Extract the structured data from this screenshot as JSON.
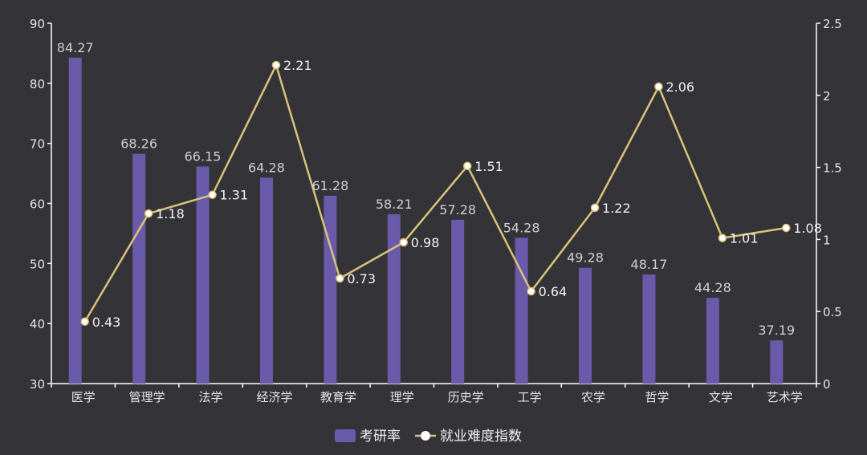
{
  "colors": {
    "background": "#343338",
    "bar": "#6a5aaa",
    "line": "#d9c27a",
    "point_fill": "#ffffff",
    "axis": "#ffffff"
  },
  "chart_data": {
    "type": "bar",
    "categories": [
      "医学",
      "管理学",
      "法学",
      "经济学",
      "教育学",
      "理学",
      "历史学",
      "工学",
      "农学",
      "哲学",
      "文学",
      "艺术学"
    ],
    "series": [
      {
        "name": "考研率",
        "type": "bar",
        "axis": "left",
        "values": [
          84.27,
          68.26,
          66.15,
          64.28,
          61.28,
          58.21,
          57.28,
          54.28,
          49.28,
          48.17,
          44.28,
          37.19
        ]
      },
      {
        "name": "就业难度指数",
        "type": "line",
        "axis": "right",
        "values": [
          0.43,
          1.18,
          1.31,
          2.21,
          0.73,
          0.98,
          1.51,
          0.64,
          1.22,
          2.06,
          1.01,
          1.08
        ]
      }
    ],
    "y_left": {
      "min": 30,
      "max": 90,
      "ticks": [
        "30",
        "40",
        "50",
        "60",
        "70",
        "80",
        "90"
      ]
    },
    "y_right": {
      "min": 0,
      "max": 2.5,
      "ticks": [
        "0",
        "0.5",
        "1",
        "1.5",
        "2",
        "2.5"
      ]
    },
    "legend": {
      "position": "bottom-center",
      "items": [
        "考研率",
        "就业难度指数"
      ]
    },
    "grid": false
  }
}
